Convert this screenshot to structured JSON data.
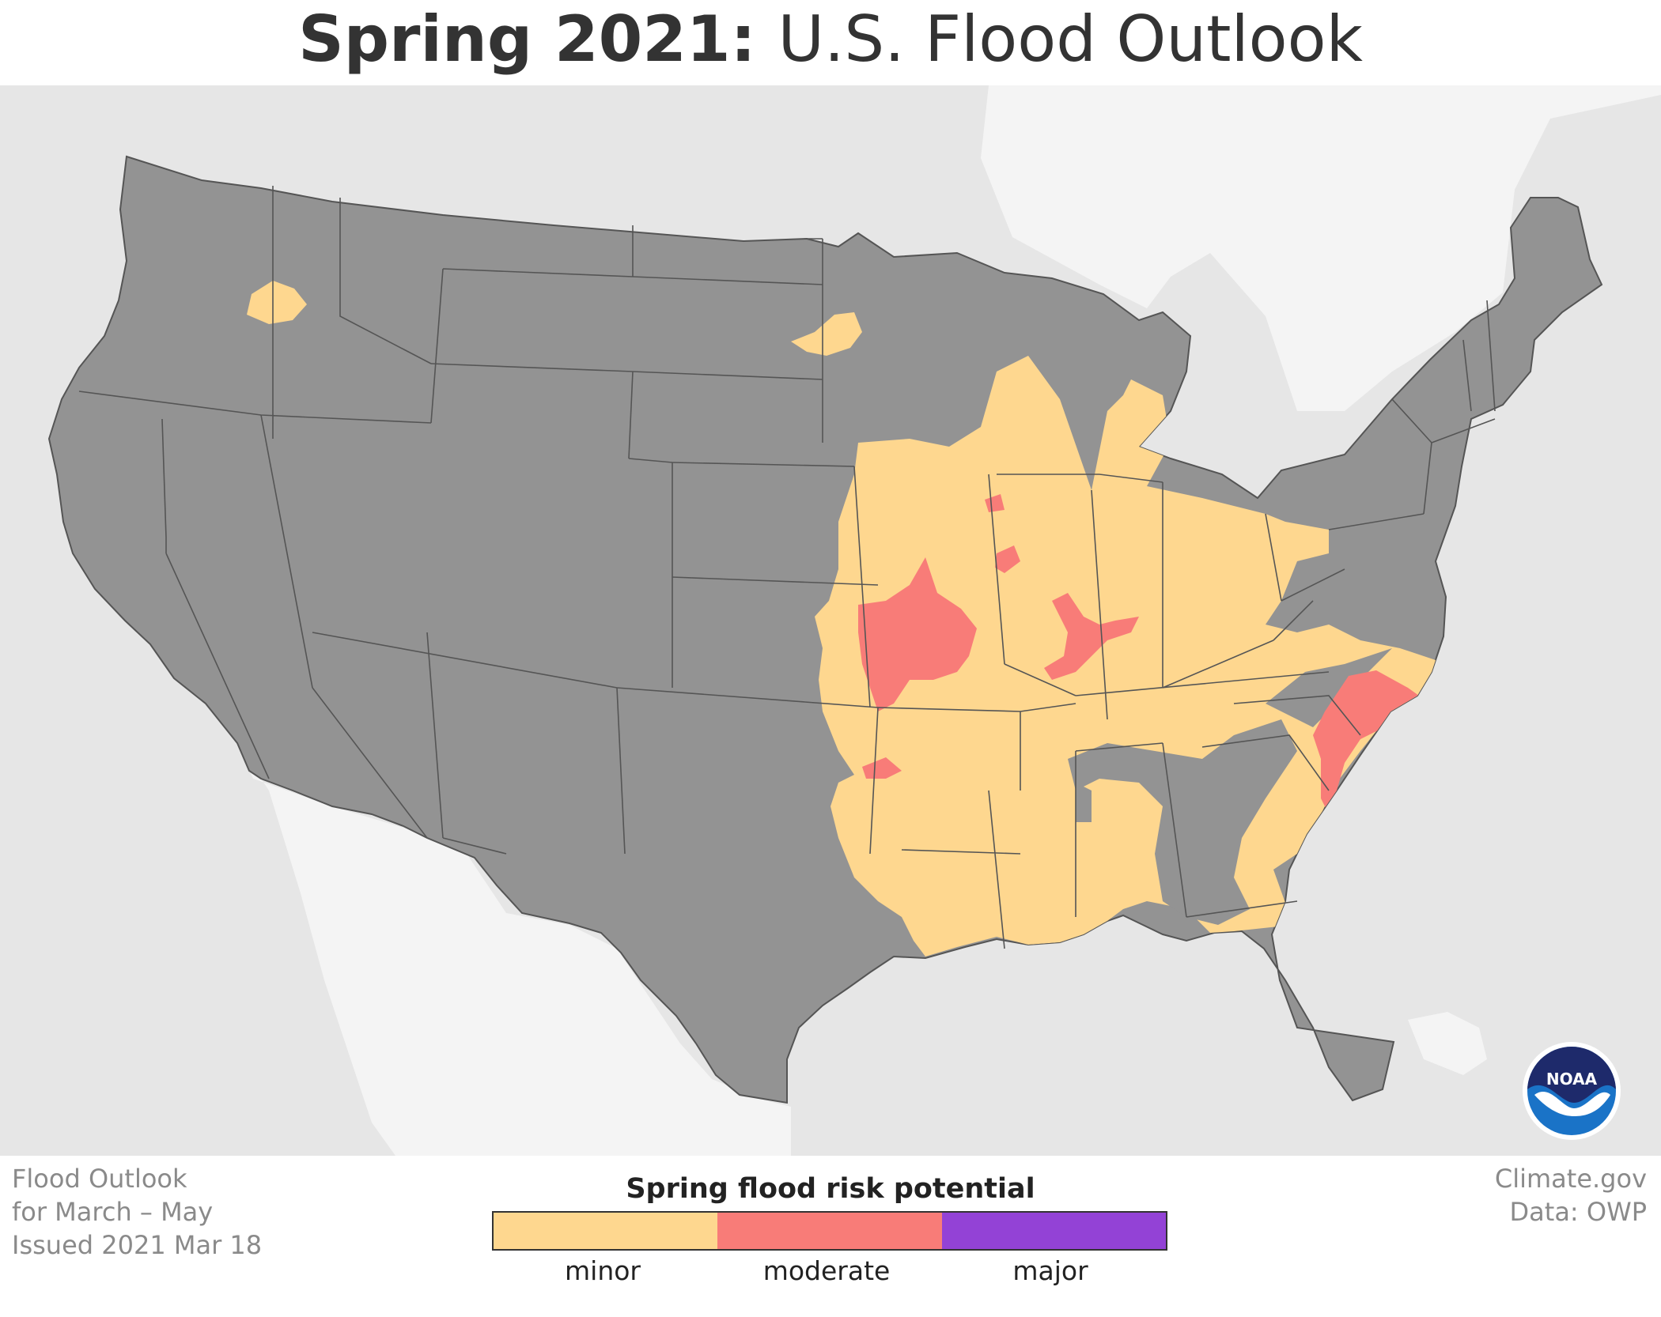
{
  "title": {
    "bold": "Spring 2021:",
    "regular": "U.S. Flood Outlook"
  },
  "meta_left": [
    "Flood Outlook",
    "for March – May",
    "Issued 2021 Mar 18"
  ],
  "meta_right": [
    "Climate.gov",
    "Data: OWP"
  ],
  "legend": {
    "title": "Spring flood risk potential",
    "items": [
      {
        "label": "minor",
        "color": "#fed78f"
      },
      {
        "label": "moderate",
        "color": "#f87c78"
      },
      {
        "label": "major",
        "color": "#9342d6"
      }
    ]
  },
  "logo": {
    "text": "NOAA"
  },
  "colors": {
    "land": "#939393",
    "ocean": "#e6e6e6",
    "border": "#555555"
  }
}
